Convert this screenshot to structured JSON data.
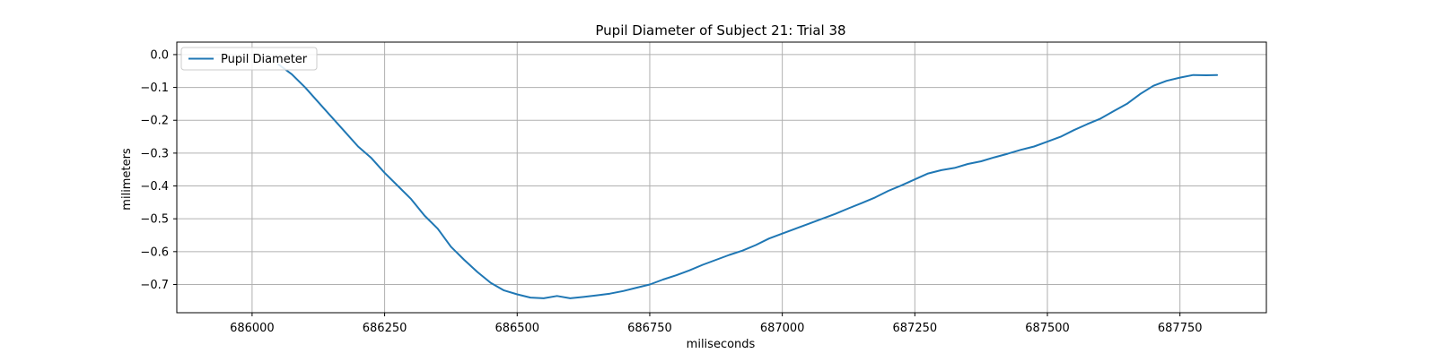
{
  "chart_data": {
    "type": "line",
    "title": "Pupil Diameter of Subject 21: Trial 38",
    "xlabel": "miliseconds",
    "ylabel": "milimeters",
    "xlim": [
      685858,
      687913
    ],
    "ylim": [
      -0.786,
      0.038
    ],
    "x_ticks": [
      686000,
      686250,
      686500,
      686750,
      687000,
      687250,
      687500,
      687750
    ],
    "x_tick_labels": [
      "686000",
      "686250",
      "686500",
      "686750",
      "687000",
      "687250",
      "687500",
      "687750"
    ],
    "y_ticks": [
      0.0,
      -0.1,
      -0.2,
      -0.3,
      -0.4,
      -0.5,
      -0.6,
      -0.7
    ],
    "y_tick_labels": [
      "0.0",
      "−0.1",
      "−0.2",
      "−0.3",
      "−0.4",
      "−0.5",
      "−0.6",
      "−0.7"
    ],
    "grid": true,
    "legend_position": "upper-left",
    "colors": {
      "series": "#1f77b4",
      "grid": "#b0b0b0"
    },
    "series": [
      {
        "name": "Pupil Diameter",
        "x": [
          686050,
          686075,
          686100,
          686125,
          686150,
          686175,
          686200,
          686225,
          686250,
          686275,
          686300,
          686325,
          686350,
          686375,
          686400,
          686425,
          686450,
          686475,
          686500,
          686525,
          686550,
          686575,
          686600,
          686625,
          686650,
          686675,
          686700,
          686725,
          686750,
          686775,
          686800,
          686825,
          686850,
          686875,
          686900,
          686925,
          686950,
          686975,
          687000,
          687025,
          687050,
          687075,
          687100,
          687125,
          687150,
          687175,
          687200,
          687225,
          687250,
          687275,
          687300,
          687325,
          687350,
          687375,
          687400,
          687425,
          687450,
          687475,
          687500,
          687525,
          687550,
          687575,
          687600,
          687625,
          687650,
          687675,
          687700,
          687725,
          687750,
          687775,
          687800,
          687820
        ],
        "y": [
          -0.03,
          -0.06,
          -0.1,
          -0.145,
          -0.19,
          -0.235,
          -0.28,
          -0.315,
          -0.36,
          -0.4,
          -0.44,
          -0.49,
          -0.53,
          -0.585,
          -0.625,
          -0.662,
          -0.695,
          -0.718,
          -0.73,
          -0.74,
          -0.742,
          -0.735,
          -0.742,
          -0.738,
          -0.733,
          -0.728,
          -0.72,
          -0.71,
          -0.7,
          -0.685,
          -0.672,
          -0.657,
          -0.64,
          -0.625,
          -0.61,
          -0.597,
          -0.58,
          -0.56,
          -0.545,
          -0.53,
          -0.515,
          -0.5,
          -0.485,
          -0.468,
          -0.452,
          -0.435,
          -0.415,
          -0.398,
          -0.38,
          -0.362,
          -0.352,
          -0.345,
          -0.333,
          -0.325,
          -0.313,
          -0.302,
          -0.29,
          -0.28,
          -0.265,
          -0.25,
          -0.23,
          -0.212,
          -0.195,
          -0.172,
          -0.15,
          -0.12,
          -0.095,
          -0.08,
          -0.07,
          -0.062,
          -0.063,
          -0.062
        ]
      }
    ]
  }
}
